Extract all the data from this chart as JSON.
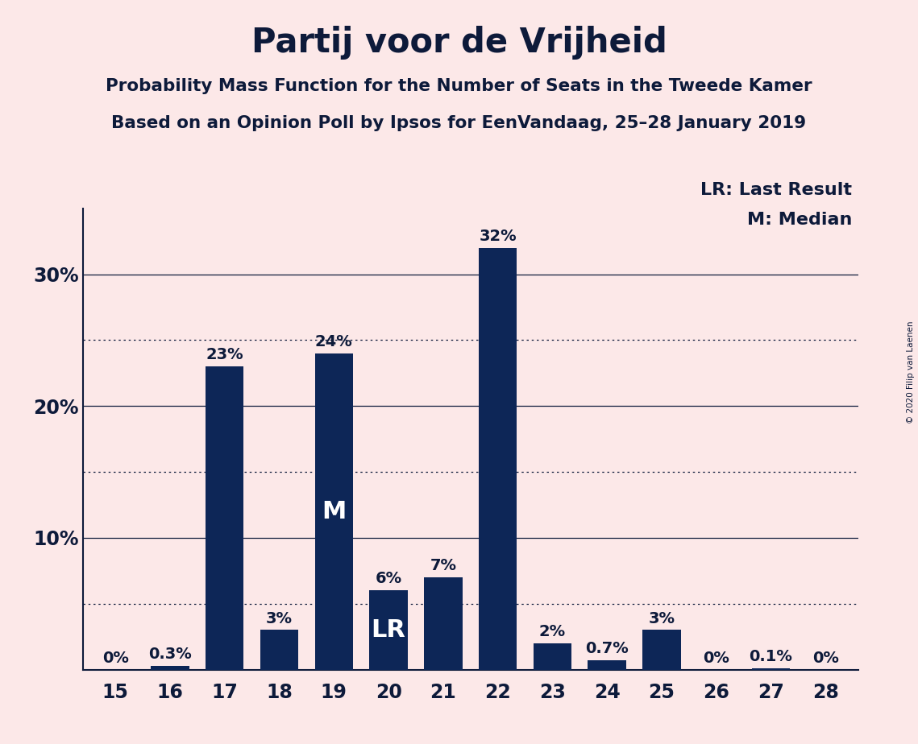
{
  "title": "Partij voor de Vrijheid",
  "subtitle1": "Probability Mass Function for the Number of Seats in the Tweede Kamer",
  "subtitle2": "Based on an Opinion Poll by Ipsos for EenVandaag, 25–28 January 2019",
  "copyright": "© 2020 Filip van Laenen",
  "categories": [
    15,
    16,
    17,
    18,
    19,
    20,
    21,
    22,
    23,
    24,
    25,
    26,
    27,
    28
  ],
  "values": [
    0.0,
    0.3,
    23.0,
    3.0,
    24.0,
    6.0,
    7.0,
    32.0,
    2.0,
    0.7,
    3.0,
    0.0,
    0.1,
    0.0
  ],
  "value_labels": [
    "0%",
    "0.3%",
    "23%",
    "3%",
    "24%",
    "6%",
    "7%",
    "32%",
    "2%",
    "0.7%",
    "3%",
    "0%",
    "0.1%",
    "0%"
  ],
  "bar_color": "#0d2657",
  "background_color": "#fce8e8",
  "median_seat": 19,
  "last_result_seat": 20,
  "ylim": [
    0,
    35
  ],
  "major_yticks": [
    10,
    20,
    30
  ],
  "major_ytick_labels": [
    "10%",
    "20%",
    "30%"
  ],
  "dotted_yticks": [
    5,
    15,
    25
  ],
  "legend_lr": "LR: Last Result",
  "legend_m": "M: Median",
  "title_fontsize": 30,
  "subtitle_fontsize": 15.5,
  "bar_label_fontsize": 14,
  "axis_label_fontsize": 17,
  "legend_fontsize": 16,
  "inside_label_fontsize": 22
}
